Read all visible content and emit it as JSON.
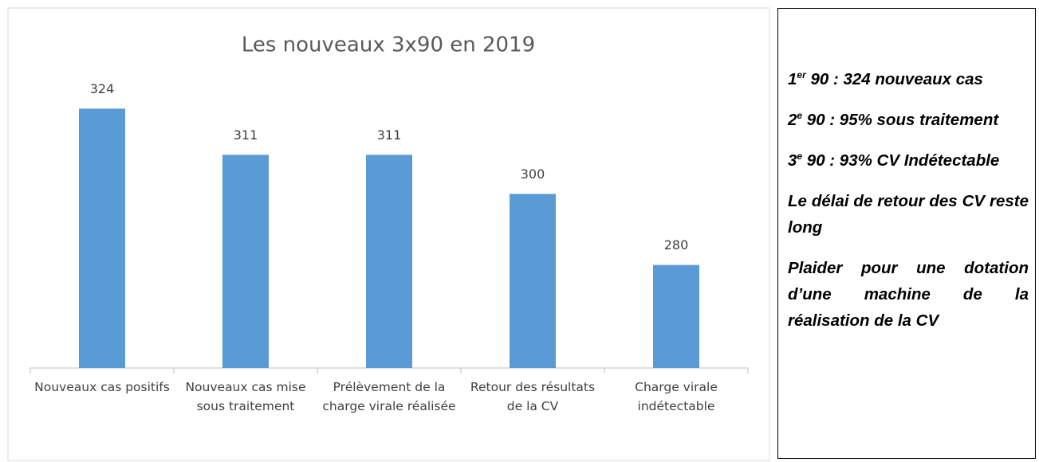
{
  "chart_data": {
    "type": "bar",
    "title": "Les nouveaux 3x90 en 2019",
    "categories": [
      "Nouveaux cas positifs",
      "Nouveaux cas mise sous traitement",
      "Prélèvement de la charge virale réalisée",
      "Retour des résultats de la CV",
      "Charge virale indétectable"
    ],
    "values": [
      324,
      311,
      311,
      300,
      280
    ],
    "color": "#5b9bd5",
    "ylim": [
      251,
      340
    ]
  },
  "side_panel": {
    "numbered_notes": [
      {
        "number": "1",
        "sup": "er",
        "text": " 90 : 324 nouveaux cas"
      },
      {
        "number": "2",
        "sup": "e",
        "text": " 90 : 95% sous traitement"
      },
      {
        "number": "3",
        "sup": "e",
        "text": " 90 : 93% CV Indétectable"
      }
    ],
    "notes": [
      "Le délai de retour des CV reste long",
      "Plaider pour une dotation d’une machine de la réalisation de la CV"
    ]
  }
}
